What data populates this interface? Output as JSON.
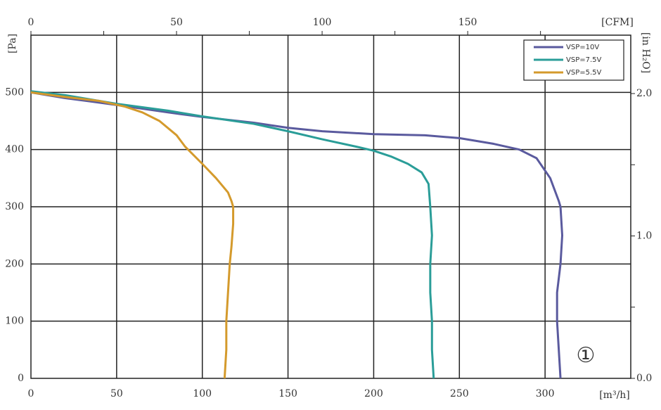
{
  "chart_data": {
    "type": "line",
    "series": [
      {
        "name": "VSP=10V",
        "color": "#5a5a9e",
        "x": [
          0,
          20,
          50,
          80,
          100,
          130,
          150,
          170,
          200,
          230,
          250,
          270,
          285,
          295,
          303,
          308,
          309,
          310,
          309,
          307,
          307,
          308,
          309
        ],
        "values": [
          500,
          490,
          478,
          465,
          457,
          447,
          438,
          432,
          427,
          425,
          420,
          410,
          400,
          385,
          350,
          310,
          300,
          250,
          200,
          150,
          100,
          50,
          0
        ]
      },
      {
        "name": "VSP=7.5V",
        "color": "#2a9d98",
        "x": [
          0,
          20,
          50,
          80,
          100,
          130,
          150,
          170,
          190,
          200,
          210,
          220,
          228,
          232,
          233,
          234,
          233,
          233,
          234,
          234,
          235
        ],
        "values": [
          502,
          495,
          480,
          468,
          458,
          445,
          432,
          418,
          405,
          398,
          388,
          375,
          360,
          340,
          300,
          250,
          200,
          150,
          100,
          50,
          0
        ]
      },
      {
        "name": "VSP=5.5V",
        "color": "#d49a2c",
        "x": [
          0,
          20,
          40,
          55,
          65,
          75,
          85,
          90,
          100,
          108,
          115,
          117,
          118,
          118,
          117,
          116,
          115,
          114,
          114,
          113
        ],
        "values": [
          500,
          492,
          485,
          475,
          465,
          450,
          425,
          405,
          375,
          350,
          325,
          310,
          300,
          270,
          230,
          200,
          150,
          100,
          50,
          0
        ]
      }
    ],
    "xlabel": "[m³/h]",
    "ylabel": "[Pa]",
    "x2label": "[CFM]",
    "y2label": "[in H₂O]",
    "annotation": "①",
    "xlim": [
      0,
      350
    ],
    "xticks": [
      0,
      50,
      100,
      150,
      200,
      250,
      300
    ],
    "ylim": [
      0,
      600
    ],
    "yticks": [
      0,
      100,
      200,
      300,
      400,
      500
    ],
    "x2lim": [
      0,
      206
    ],
    "x2ticks": [
      0,
      50,
      100,
      150
    ],
    "x2minor": [
      25,
      75,
      125,
      175
    ],
    "y2lim": [
      0,
      2.41
    ],
    "y2ticks": [
      {
        "value": 0,
        "label": "0.0"
      },
      {
        "value": 1,
        "label": "1.0"
      },
      {
        "value": 2,
        "label": "2.0"
      }
    ],
    "y2minor": [
      0.5,
      1.5
    ],
    "grid": true,
    "legend": "upper right"
  }
}
